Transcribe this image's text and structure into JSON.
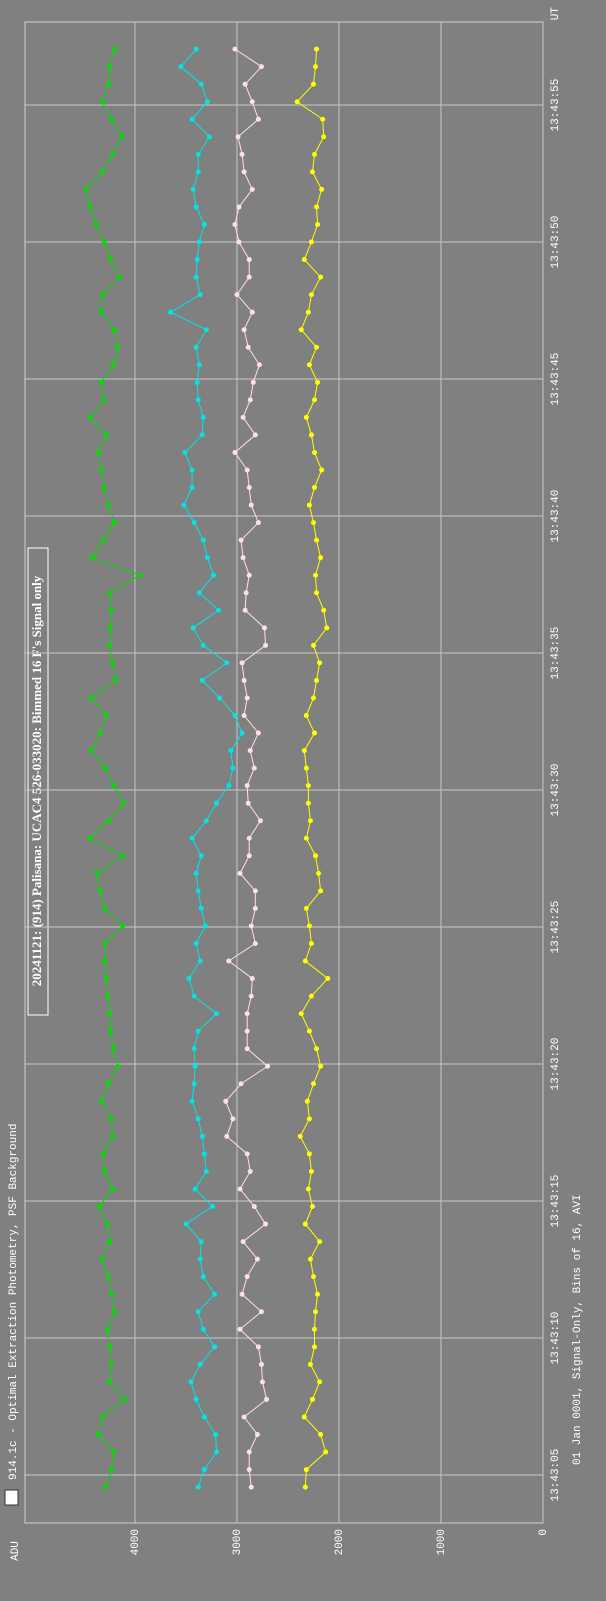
{
  "chart_data": {
    "type": "line",
    "title": "20241121: (914) Palisana: UCAC4 526-033020: Bimmed 16 F's Signal only",
    "subtitle": "914.1c - Optimal Extraction Photometry, PSF Background",
    "ylabel": "ADU",
    "xlabel": "UT",
    "footer": "01 Jan 0001, Signal-Only, Bins of 16, AVI",
    "grid": true,
    "xlim": [
      49383.25,
      49438.03
    ],
    "ylim": [
      0,
      5078
    ],
    "xticks": [
      {
        "value": 49385,
        "label": "13:43:05"
      },
      {
        "value": 49390,
        "label": "13:43:10"
      },
      {
        "value": 49395,
        "label": "13:43:15"
      },
      {
        "value": 49400,
        "label": "13:43:20"
      },
      {
        "value": 49405,
        "label": "13:43:25"
      },
      {
        "value": 49410,
        "label": "13:43:30"
      },
      {
        "value": 49415,
        "label": "13:43:35"
      },
      {
        "value": 49420,
        "label": "13:43:40"
      },
      {
        "value": 49425,
        "label": "13:43:45"
      },
      {
        "value": 49430,
        "label": "13:43:50"
      },
      {
        "value": 49435,
        "label": "13:43:55"
      }
    ],
    "yticks": [
      0,
      1000,
      2000,
      3000,
      4000
    ],
    "x": [
      49384.56,
      49385.2,
      49385.84,
      49386.48,
      49387.12,
      49387.76,
      49388.4,
      49389.04,
      49389.68,
      49390.32,
      49390.96,
      49391.6,
      49392.24,
      49392.88,
      49393.52,
      49394.16,
      49394.8,
      49395.44,
      49396.08,
      49396.72,
      49397.36,
      49398.0,
      49398.64,
      49399.28,
      49399.92,
      49400.56,
      49401.2,
      49401.84,
      49402.48,
      49403.12,
      49403.76,
      49404.4,
      49405.04,
      49405.68,
      49406.32,
      49406.96,
      49407.6,
      49408.24,
      49408.88,
      49409.52,
      49410.16,
      49410.8,
      49411.44,
      49412.08,
      49412.72,
      49413.36,
      49414.0,
      49414.64,
      49415.28,
      49415.92,
      49416.56,
      49417.2,
      49417.84,
      49418.48,
      49419.12,
      49419.76,
      49420.4,
      49421.04,
      49421.68,
      49422.32,
      49422.96,
      49423.6,
      49424.24,
      49424.88,
      49425.52,
      49426.16,
      49426.8,
      49427.44,
      49428.08,
      49428.72,
      49429.36,
      49430.0,
      49430.64,
      49431.28,
      49431.92,
      49432.56,
      49433.2,
      49433.84,
      49434.48,
      49435.12,
      49435.76,
      49436.4,
      49437.04
    ],
    "series": [
      {
        "color": "#00e000",
        "values": [
          4290,
          4230,
          4210,
          4360,
          4320,
          4100,
          4250,
          4230,
          4250,
          4270,
          4200,
          4230,
          4260,
          4320,
          4250,
          4270,
          4350,
          4220,
          4300,
          4310,
          4220,
          4230,
          4330,
          4260,
          4170,
          4210,
          4240,
          4250,
          4270,
          4280,
          4300,
          4290,
          4120,
          4300,
          4340,
          4370,
          4120,
          4440,
          4260,
          4110,
          4210,
          4290,
          4430,
          4340,
          4280,
          4430,
          4190,
          4220,
          4250,
          4240,
          4230,
          4250,
          3950,
          4420,
          4310,
          4200,
          4260,
          4300,
          4330,
          4360,
          4280,
          4440,
          4300,
          4330,
          4210,
          4170,
          4200,
          4330,
          4320,
          4150,
          4240,
          4300,
          4380,
          4440,
          4480,
          4320,
          4220,
          4130,
          4230,
          4320,
          4260,
          4250,
          4200
        ]
      },
      {
        "color": "#00e5e5",
        "values": [
          3380,
          3320,
          3200,
          3210,
          3320,
          3400,
          3450,
          3360,
          3220,
          3330,
          3380,
          3220,
          3330,
          3360,
          3350,
          3500,
          3240,
          3410,
          3300,
          3320,
          3340,
          3380,
          3440,
          3420,
          3410,
          3420,
          3380,
          3200,
          3420,
          3470,
          3360,
          3400,
          3310,
          3350,
          3380,
          3400,
          3350,
          3440,
          3300,
          3200,
          3080,
          3040,
          3060,
          2950,
          3020,
          3170,
          3340,
          3100,
          3330,
          3430,
          3180,
          3370,
          3230,
          3290,
          3330,
          3420,
          3520,
          3440,
          3440,
          3510,
          3340,
          3330,
          3380,
          3390,
          3370,
          3400,
          3300,
          3650,
          3360,
          3400,
          3390,
          3370,
          3320,
          3400,
          3430,
          3380,
          3380,
          3270,
          3440,
          3290,
          3350,
          3550,
          3400
        ]
      },
      {
        "color": "#ffe0e0",
        "values": [
          2860,
          2880,
          2880,
          2800,
          2930,
          2710,
          2750,
          2760,
          2790,
          2970,
          2760,
          2950,
          2900,
          2800,
          2940,
          2720,
          2830,
          2970,
          2870,
          2900,
          3100,
          3040,
          3110,
          2960,
          2700,
          2900,
          2900,
          2900,
          2860,
          2850,
          3080,
          2820,
          2860,
          2820,
          2820,
          2970,
          2880,
          2880,
          2770,
          2890,
          2900,
          2830,
          2870,
          2790,
          2930,
          2900,
          2930,
          2950,
          2720,
          2730,
          2920,
          2910,
          2880,
          2940,
          2960,
          2790,
          2860,
          2880,
          2900,
          3020,
          2820,
          2940,
          2870,
          2840,
          2780,
          2890,
          2930,
          2850,
          3000,
          2880,
          2880,
          2980,
          3020,
          2980,
          2850,
          2930,
          2950,
          2990,
          2790,
          2850,
          2920,
          2760,
          3020
        ]
      },
      {
        "color": "#ffff00",
        "values": [
          2330,
          2320,
          2130,
          2180,
          2340,
          2260,
          2190,
          2280,
          2240,
          2240,
          2230,
          2210,
          2250,
          2280,
          2190,
          2330,
          2260,
          2300,
          2270,
          2290,
          2380,
          2290,
          2310,
          2250,
          2180,
          2220,
          2290,
          2370,
          2270,
          2110,
          2330,
          2270,
          2290,
          2320,
          2180,
          2200,
          2230,
          2320,
          2280,
          2300,
          2300,
          2320,
          2340,
          2240,
          2320,
          2250,
          2220,
          2190,
          2250,
          2120,
          2150,
          2220,
          2230,
          2180,
          2220,
          2250,
          2290,
          2240,
          2170,
          2240,
          2270,
          2320,
          2240,
          2210,
          2290,
          2220,
          2370,
          2300,
          2270,
          2180,
          2340,
          2270,
          2210,
          2220,
          2170,
          2260,
          2240,
          2150,
          2160,
          2410,
          2250,
          2230,
          2220
        ]
      }
    ]
  }
}
